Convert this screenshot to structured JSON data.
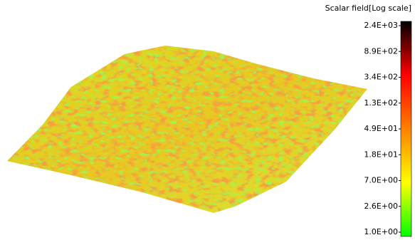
{
  "colorbar": {
    "title": "Scalar field[Log scale]",
    "ticks": [
      "2.4E+03",
      "8.9E+02",
      "3.4E+02",
      "1.3E+02",
      "4.9E+01",
      "1.8E+01",
      "7.0E+00",
      "2.6E+00",
      "1.0E+00"
    ],
    "colors": [
      "#000000",
      "#ff0000",
      "#ff8000",
      "#ffff00",
      "#00ff00"
    ]
  }
}
